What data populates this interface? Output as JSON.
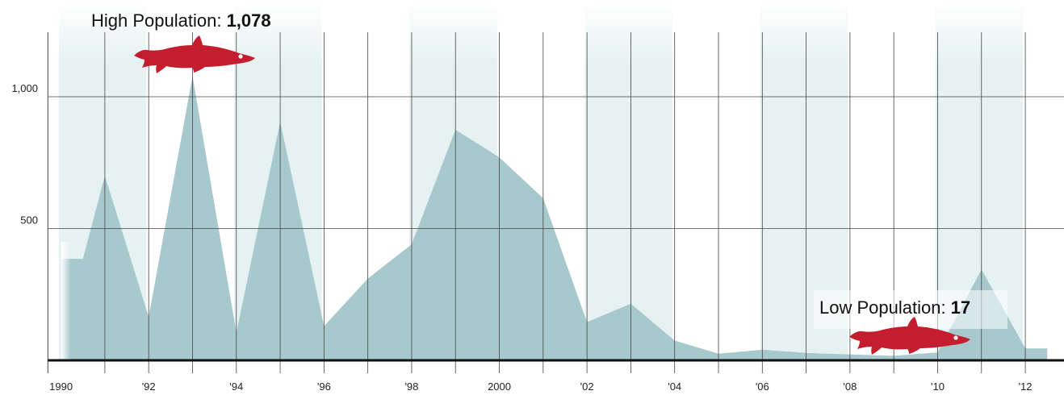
{
  "chart_data": {
    "type": "area",
    "title": "",
    "xlabel": "",
    "ylabel": "",
    "x": [
      1990,
      1990.5,
      1991,
      1992,
      1993,
      1994,
      1995,
      1996,
      1997,
      1998,
      1999,
      2000,
      2001,
      2002,
      2003,
      2004,
      2005,
      2006,
      2007,
      2008,
      2009,
      2010,
      2011,
      2012,
      2012.5
    ],
    "values": [
      385,
      385,
      700,
      165,
      1078,
      105,
      905,
      130,
      310,
      440,
      875,
      770,
      615,
      145,
      215,
      75,
      25,
      40,
      28,
      22,
      17,
      30,
      345,
      45,
      45
    ],
    "xlim": [
      1989.7,
      2012.8
    ],
    "ylim": [
      0,
      1230
    ],
    "x_tick_labels": [
      {
        "x": 1990,
        "label": "1990"
      },
      {
        "x": 1992,
        "label": "'92"
      },
      {
        "x": 1994,
        "label": "'94"
      },
      {
        "x": 1996,
        "label": "'96"
      },
      {
        "x": 1998,
        "label": "'98"
      },
      {
        "x": 2000,
        "label": "2000"
      },
      {
        "x": 2002,
        "label": "'02"
      },
      {
        "x": 2004,
        "label": "'04"
      },
      {
        "x": 2006,
        "label": "'06"
      },
      {
        "x": 2008,
        "label": "'08"
      },
      {
        "x": 2010,
        "label": "'10"
      },
      {
        "x": 2012,
        "label": "'12"
      }
    ],
    "y_ticks": [
      {
        "y": 500,
        "label": "500"
      },
      {
        "y": 1000,
        "label": "1,000"
      }
    ],
    "year_gridlines": [
      1991,
      1992,
      1993,
      1994,
      1995,
      1996,
      1997,
      1998,
      1999,
      2000,
      2001,
      2002,
      2003,
      2004,
      2005,
      2006,
      2007,
      2008,
      2009,
      2010,
      2011,
      2012
    ],
    "shaded_bands": [
      [
        1989.95,
        1991.95
      ],
      [
        1993.95,
        1995.95
      ],
      [
        1997.95,
        1999.95
      ],
      [
        2001.95,
        2003.95
      ],
      [
        2005.95,
        2007.95
      ],
      [
        2009.95,
        2011.95
      ]
    ],
    "grid": true,
    "annotations": {
      "high": {
        "label": "High Population: ",
        "value": "1,078",
        "year": 1993
      },
      "low": {
        "label": "Low Population: ",
        "value": "17",
        "year": 2009
      }
    },
    "colors": {
      "area": "#a7c8cc",
      "band": "#e5f2f1",
      "grid": "#444444",
      "baseline": "#111111",
      "fish": "#c41e2e"
    }
  }
}
